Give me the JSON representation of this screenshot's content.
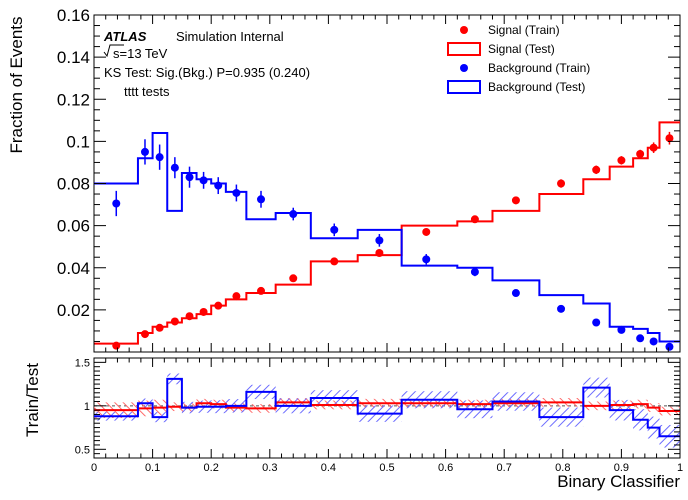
{
  "chart_data": {
    "type": "line",
    "xlabel": "Binary Classifier",
    "top_ylabel": "Fraction of Events",
    "bottom_ylabel": "Train/Test",
    "x_range": [
      0,
      1
    ],
    "top_ylim": [
      0,
      0.16
    ],
    "bottom_ylim": [
      0.4,
      1.55
    ],
    "x_ticks": [
      "0",
      "0.1",
      "0.2",
      "0.3",
      "0.4",
      "0.5",
      "0.6",
      "0.7",
      "0.8",
      "0.9",
      "1"
    ],
    "top_y_ticks": [
      "0.02",
      "0.04",
      "0.06",
      "0.08",
      "0.1",
      "0.12",
      "0.14",
      "0.16"
    ],
    "bottom_y_ticks": [
      "0.5",
      "1",
      "1.5"
    ],
    "annotations": {
      "atlas": "ATLAS",
      "status": "Simulation Internal",
      "energy": "s=13 TeV",
      "ks_test": "KS Test: Sig.(Bkg.) P=0.935 (0.240)",
      "sample": "tttt tests"
    },
    "legend": {
      "placement": "top-right",
      "entries": [
        "Signal (Train)",
        "Signal (Test)",
        "Background (Train)",
        "Background (Test)"
      ]
    },
    "colors": {
      "signal": "#ff0000",
      "background": "#0000ff"
    },
    "bin_edges": [
      0,
      0.075,
      0.1,
      0.125,
      0.15,
      0.175,
      0.2,
      0.225,
      0.26,
      0.31,
      0.37,
      0.45,
      0.525,
      0.62,
      0.68,
      0.76,
      0.835,
      0.88,
      0.92,
      0.945,
      0.965,
      1.0
    ],
    "series": [
      {
        "name": "Signal (Test)",
        "values": [
          0.004,
          0.009,
          0.012,
          0.014,
          0.016,
          0.018,
          0.022,
          0.025,
          0.028,
          0.032,
          0.043,
          0.046,
          0.06,
          0.062,
          0.067,
          0.075,
          0.082,
          0.088,
          0.092,
          0.097,
          0.109
        ]
      },
      {
        "name": "Background (Test)",
        "values": [
          0.08,
          0.092,
          0.104,
          0.067,
          0.085,
          0.082,
          0.08,
          0.076,
          0.063,
          0.066,
          0.054,
          0.058,
          0.041,
          0.04,
          0.034,
          0.027,
          0.023,
          0.012,
          0.011,
          0.009,
          0.005
        ]
      },
      {
        "name": "Signal (Train)",
        "x": [
          0.038,
          0.087,
          0.112,
          0.138,
          0.163,
          0.187,
          0.212,
          0.243,
          0.285,
          0.34,
          0.41,
          0.487,
          0.567,
          0.65,
          0.72,
          0.797,
          0.857,
          0.9,
          0.932,
          0.955,
          0.982
        ],
        "y": [
          0.003,
          0.0085,
          0.0115,
          0.0145,
          0.017,
          0.019,
          0.022,
          0.0265,
          0.029,
          0.035,
          0.043,
          0.047,
          0.057,
          0.063,
          0.072,
          0.08,
          0.0865,
          0.091,
          0.094,
          0.097,
          0.1015
        ],
        "err": [
          0.0004,
          0.0008,
          0.001,
          0.001,
          0.001,
          0.001,
          0.001,
          0.001,
          0.001,
          0.0013,
          0.0013,
          0.0015,
          0.0017,
          0.0017,
          0.0018,
          0.002,
          0.002,
          0.002,
          0.002,
          0.0025,
          0.003
        ]
      },
      {
        "name": "Background (Train)",
        "x": [
          0.038,
          0.087,
          0.112,
          0.138,
          0.163,
          0.187,
          0.212,
          0.243,
          0.285,
          0.34,
          0.41,
          0.487,
          0.567,
          0.65,
          0.72,
          0.797,
          0.857,
          0.9,
          0.932,
          0.955,
          0.982
        ],
        "y": [
          0.0705,
          0.095,
          0.0925,
          0.0875,
          0.083,
          0.0815,
          0.079,
          0.0755,
          0.0725,
          0.0655,
          0.058,
          0.053,
          0.044,
          0.038,
          0.028,
          0.0205,
          0.014,
          0.0105,
          0.0065,
          0.005,
          0.0025
        ],
        "err": [
          0.006,
          0.006,
          0.006,
          0.005,
          0.005,
          0.004,
          0.004,
          0.004,
          0.004,
          0.003,
          0.003,
          0.003,
          0.0025,
          0.002,
          0.0015,
          0.0015,
          0.001,
          0.001,
          0.001,
          0.001,
          0.0008
        ]
      }
    ],
    "ratio_series": [
      {
        "name": "Signal ratio",
        "values": [
          0.95,
          0.97,
          0.98,
          0.99,
          0.98,
          1.03,
          1.02,
          0.98,
          0.97,
          1.04,
          1.01,
          1.03,
          1.03,
          1.02,
          1.03,
          1.04,
          1.0,
          1.01,
          1.02,
          0.98,
          0.94
        ]
      },
      {
        "name": "Background ratio",
        "values": [
          0.88,
          1.03,
          0.87,
          1.31,
          0.98,
          0.99,
          0.99,
          1.0,
          1.16,
          1.0,
          1.09,
          0.91,
          1.07,
          0.96,
          1.05,
          0.87,
          1.21,
          0.95,
          0.84,
          0.75,
          0.65
        ]
      }
    ]
  }
}
